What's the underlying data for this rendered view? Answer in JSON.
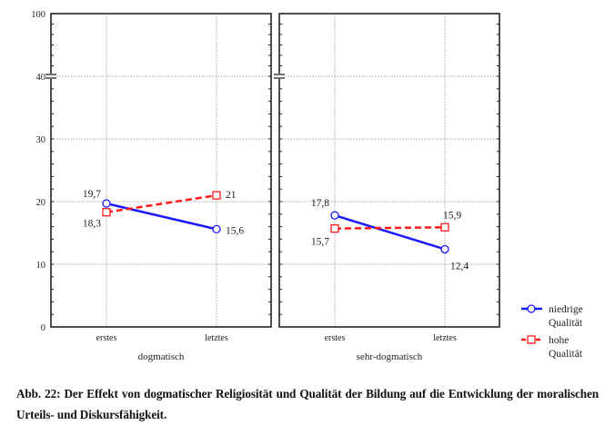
{
  "chart_data": {
    "type": "line",
    "ylim": [
      0,
      100
    ],
    "y_axis_break": [
      40,
      100
    ],
    "y_ticks": [
      0,
      10,
      20,
      30,
      40,
      100
    ],
    "y_tick_labels": [
      "0",
      "10",
      "20",
      "30",
      "40",
      "100"
    ],
    "grid": true,
    "legend_position": "bottom-right",
    "categories": [
      "erstes",
      "letztes"
    ],
    "panels": [
      {
        "xlabel": "dogmatisch",
        "series": [
          {
            "name": "niedrige Qualität",
            "values": [
              19.7,
              15.6
            ],
            "labels": [
              "19,7",
              "15,6"
            ]
          },
          {
            "name": "hohe Qualität",
            "values": [
              18.3,
              21
            ],
            "labels": [
              "18,3",
              "21"
            ]
          }
        ]
      },
      {
        "xlabel": "sehr-dogmatisch",
        "series": [
          {
            "name": "niedrige Qualität",
            "values": [
              17.8,
              12.4
            ],
            "labels": [
              "17,8",
              "12,4"
            ]
          },
          {
            "name": "hohe Qualität",
            "values": [
              15.7,
              15.9
            ],
            "labels": [
              "15,7",
              "15,9"
            ]
          }
        ]
      }
    ],
    "legend": [
      {
        "line1": "niedrige",
        "line2": "Qualität",
        "color": "#1a1aff",
        "marker": "circle",
        "dash": false
      },
      {
        "line1": "hohe",
        "line2": "Qualität",
        "color": "#ff1a1a",
        "marker": "square",
        "dash": true
      }
    ]
  },
  "caption": "Abb. 22: Der Effekt von dogmatischer Religiosität und Qualität der Bildung auf die Entwicklung der moralischen Urteils- und Diskursfähigkeit."
}
